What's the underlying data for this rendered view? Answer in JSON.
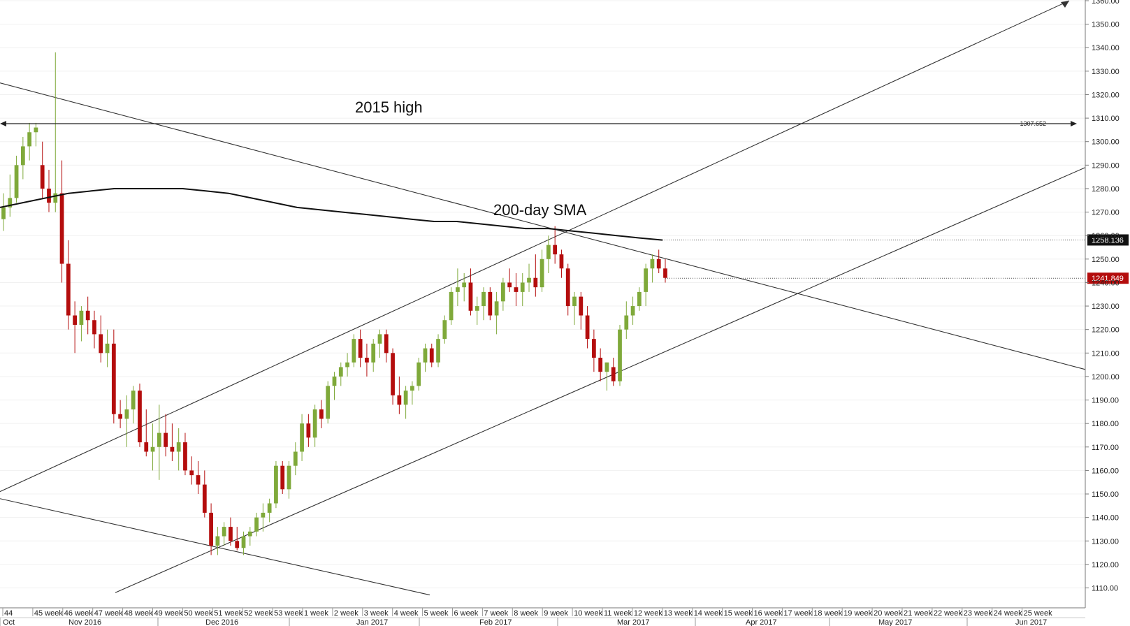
{
  "chart_data": {
    "type": "candlestick",
    "ylim": [
      1100,
      1360
    ],
    "y_ticks": [
      "1110.00",
      "1120.00",
      "1130.00",
      "1140.00",
      "1150.00",
      "1160.00",
      "1170.00",
      "1180.00",
      "1190.00",
      "1200.00",
      "1210.00",
      "1220.00",
      "1230.00",
      "1240.00",
      "1250.00",
      "1260.00",
      "1270.00",
      "1280.00",
      "1290.00",
      "1300.00",
      "1310.00",
      "1320.00",
      "1330.00",
      "1340.00",
      "1350.00",
      "1360.00"
    ],
    "x_week_labels": [
      "44",
      "45 week",
      "46 week",
      "47 week",
      "48 week",
      "49 week",
      "50 week",
      "51 week",
      "52 week",
      "53 week",
      "1 week",
      "2 week",
      "3 week",
      "4 week",
      "5 week",
      "6 week",
      "7 week",
      "8 week",
      "9 week",
      "10 week",
      "11 week",
      "12 week",
      "13 week",
      "14 week",
      "15 week",
      "16 week",
      "17 week",
      "18 week",
      "19 week",
      "20 week",
      "21 week",
      "22 week",
      "23 week",
      "24 week",
      "25 week"
    ],
    "x_month_labels": [
      "Oct",
      "Nov 2016",
      "Dec 2016",
      "Jan 2017",
      "Feb 2017",
      "Mar 2017",
      "Apr 2017",
      "May 2017",
      "Jun 2017"
    ],
    "candles": [
      [
        1267,
        1278,
        1262,
        1272
      ],
      [
        1272,
        1286,
        1268,
        1276
      ],
      [
        1276,
        1294,
        1274,
        1290
      ],
      [
        1290,
        1302,
        1284,
        1298
      ],
      [
        1298,
        1308,
        1292,
        1304
      ],
      [
        1304,
        1308,
        1298,
        1306
      ],
      [
        1290,
        1300,
        1276,
        1280
      ],
      [
        1280,
        1288,
        1270,
        1274
      ],
      [
        1274,
        1338,
        1270,
        1278
      ],
      [
        1278,
        1292,
        1240,
        1248
      ],
      [
        1248,
        1258,
        1220,
        1226
      ],
      [
        1226,
        1232,
        1210,
        1222
      ],
      [
        1222,
        1230,
        1215,
        1228
      ],
      [
        1228,
        1234,
        1218,
        1224
      ],
      [
        1224,
        1228,
        1212,
        1218
      ],
      [
        1218,
        1226,
        1206,
        1210
      ],
      [
        1210,
        1220,
        1204,
        1214
      ],
      [
        1214,
        1220,
        1180,
        1184
      ],
      [
        1184,
        1190,
        1178,
        1182
      ],
      [
        1182,
        1192,
        1170,
        1186
      ],
      [
        1186,
        1196,
        1180,
        1194
      ],
      [
        1194,
        1197,
        1170,
        1172
      ],
      [
        1172,
        1186,
        1166,
        1168
      ],
      [
        1168,
        1180,
        1160,
        1170
      ],
      [
        1170,
        1188,
        1156,
        1176
      ],
      [
        1176,
        1184,
        1166,
        1170
      ],
      [
        1170,
        1180,
        1164,
        1168
      ],
      [
        1168,
        1178,
        1160,
        1172
      ],
      [
        1172,
        1176,
        1158,
        1160
      ],
      [
        1160,
        1166,
        1154,
        1158
      ],
      [
        1158,
        1164,
        1150,
        1154
      ],
      [
        1154,
        1160,
        1140,
        1142
      ],
      [
        1142,
        1146,
        1124,
        1128
      ],
      [
        1128,
        1136,
        1124,
        1132
      ],
      [
        1132,
        1138,
        1128,
        1136
      ],
      [
        1136,
        1140,
        1128,
        1130
      ],
      [
        1130,
        1136,
        1126,
        1127
      ],
      [
        1127,
        1134,
        1124,
        1132
      ],
      [
        1132,
        1136,
        1128,
        1134
      ],
      [
        1134,
        1142,
        1132,
        1140
      ],
      [
        1140,
        1146,
        1134,
        1142
      ],
      [
        1142,
        1148,
        1138,
        1146
      ],
      [
        1146,
        1164,
        1144,
        1162
      ],
      [
        1162,
        1164,
        1150,
        1152
      ],
      [
        1152,
        1164,
        1148,
        1162
      ],
      [
        1162,
        1172,
        1158,
        1168
      ],
      [
        1168,
        1184,
        1164,
        1180
      ],
      [
        1180,
        1184,
        1170,
        1174
      ],
      [
        1174,
        1188,
        1170,
        1186
      ],
      [
        1186,
        1190,
        1178,
        1182
      ],
      [
        1182,
        1198,
        1180,
        1196
      ],
      [
        1196,
        1202,
        1190,
        1200
      ],
      [
        1200,
        1206,
        1196,
        1204
      ],
      [
        1204,
        1210,
        1200,
        1206
      ],
      [
        1206,
        1218,
        1204,
        1216
      ],
      [
        1216,
        1220,
        1204,
        1208
      ],
      [
        1208,
        1214,
        1200,
        1206
      ],
      [
        1206,
        1216,
        1202,
        1214
      ],
      [
        1214,
        1220,
        1208,
        1218
      ],
      [
        1218,
        1220,
        1206,
        1210
      ],
      [
        1210,
        1212,
        1188,
        1192
      ],
      [
        1192,
        1200,
        1184,
        1188
      ],
      [
        1188,
        1196,
        1182,
        1194
      ],
      [
        1194,
        1198,
        1188,
        1196
      ],
      [
        1196,
        1208,
        1194,
        1206
      ],
      [
        1206,
        1214,
        1202,
        1212
      ],
      [
        1212,
        1214,
        1204,
        1206
      ],
      [
        1206,
        1218,
        1204,
        1216
      ],
      [
        1216,
        1226,
        1214,
        1224
      ],
      [
        1224,
        1238,
        1222,
        1236
      ],
      [
        1236,
        1246,
        1230,
        1238
      ],
      [
        1238,
        1244,
        1232,
        1240
      ],
      [
        1240,
        1246,
        1226,
        1228
      ],
      [
        1228,
        1234,
        1222,
        1230
      ],
      [
        1230,
        1238,
        1224,
        1236
      ],
      [
        1236,
        1238,
        1224,
        1226
      ],
      [
        1226,
        1236,
        1218,
        1232
      ],
      [
        1232,
        1242,
        1228,
        1240
      ],
      [
        1240,
        1246,
        1236,
        1238
      ],
      [
        1238,
        1244,
        1230,
        1236
      ],
      [
        1236,
        1244,
        1230,
        1240
      ],
      [
        1240,
        1248,
        1236,
        1242
      ],
      [
        1242,
        1252,
        1234,
        1238
      ],
      [
        1238,
        1254,
        1236,
        1250
      ],
      [
        1250,
        1260,
        1244,
        1256
      ],
      [
        1256,
        1264,
        1248,
        1252
      ],
      [
        1252,
        1254,
        1242,
        1246
      ],
      [
        1246,
        1248,
        1226,
        1230
      ],
      [
        1230,
        1236,
        1222,
        1234
      ],
      [
        1234,
        1236,
        1220,
        1226
      ],
      [
        1226,
        1230,
        1212,
        1216
      ],
      [
        1216,
        1220,
        1202,
        1208
      ],
      [
        1208,
        1212,
        1198,
        1202
      ],
      [
        1202,
        1206,
        1194,
        1206
      ],
      [
        1204,
        1208,
        1196,
        1198
      ],
      [
        1198,
        1222,
        1196,
        1220
      ],
      [
        1220,
        1232,
        1216,
        1226
      ],
      [
        1226,
        1234,
        1222,
        1230
      ],
      [
        1230,
        1238,
        1228,
        1236
      ],
      [
        1236,
        1248,
        1230,
        1246
      ],
      [
        1246,
        1252,
        1240,
        1250
      ],
      [
        1250,
        1254,
        1244,
        1246
      ],
      [
        1246,
        1250,
        1240,
        1242
      ]
    ],
    "sma_200": [
      1272,
      1274,
      1276,
      1278,
      1279,
      1280,
      1280,
      1280,
      1280,
      1279,
      1278,
      1276,
      1274,
      1272,
      1271,
      1270,
      1269,
      1268,
      1267,
      1266,
      1266,
      1265,
      1264,
      1263,
      1263,
      1262,
      1261,
      1260,
      1259,
      1258.1
    ],
    "levels": {
      "high_2015": 1307.652,
      "sma_last": 1258.136,
      "price_last": 1241.849
    },
    "annotations": [
      "2015 high",
      "200-day SMA"
    ],
    "price_tags": [
      "1307.652",
      "1258.136",
      "1241.849"
    ],
    "colors": {
      "up": "#7fa93a",
      "down": "#b40d0d",
      "sma": "#111111",
      "last_price_bg": "#b40d0d",
      "sma_tag_bg": "#111111"
    },
    "grid": true
  }
}
